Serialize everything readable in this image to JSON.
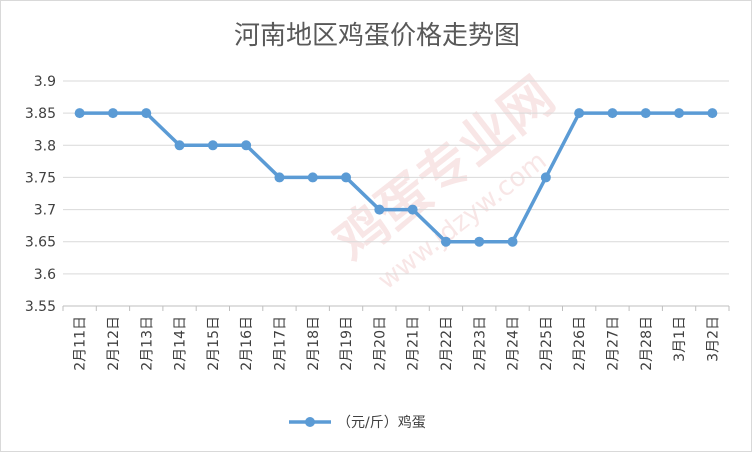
{
  "chart_data": {
    "type": "line",
    "title": "河南地区鸡蛋价格走势图",
    "xlabel": "",
    "ylabel": "",
    "categories": [
      "2月11日",
      "2月12日",
      "2月13日",
      "2月14日",
      "2月15日",
      "2月16日",
      "2月17日",
      "2月18日",
      "2月19日",
      "2月20日",
      "2月21日",
      "2月22日",
      "2月23日",
      "2月24日",
      "2月25日",
      "2月26日",
      "2月27日",
      "2月28日",
      "3月1日",
      "3月2日"
    ],
    "series": [
      {
        "name": "（元/斤）鸡蛋",
        "values": [
          3.85,
          3.85,
          3.85,
          3.8,
          3.8,
          3.8,
          3.75,
          3.75,
          3.75,
          3.7,
          3.7,
          3.65,
          3.65,
          3.65,
          3.75,
          3.85,
          3.85,
          3.85,
          3.85,
          3.85
        ],
        "color": "#5b9bd5"
      }
    ],
    "ylim": [
      3.55,
      3.9
    ],
    "yticks": [
      "3.55",
      "3.6",
      "3.65",
      "3.7",
      "3.75",
      "3.8",
      "3.85",
      "3.9"
    ],
    "grid": true,
    "legend_position": "bottom",
    "watermark": "鸡蛋专业网 www.jdzyw.com"
  }
}
